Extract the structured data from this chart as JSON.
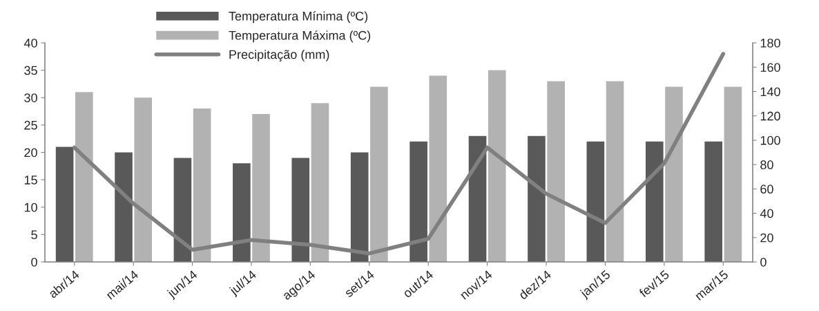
{
  "chart_data": {
    "type": "bar",
    "categories": [
      "abr/14",
      "mai/14",
      "jun/14",
      "jul/14",
      "ago/14",
      "set/14",
      "out/14",
      "nov/14",
      "dez/14",
      "jan/15",
      "fev/15",
      "mar/15"
    ],
    "series": [
      {
        "name": "Temperatura Mínima (ºC)",
        "color": "#595959",
        "values": [
          21,
          20,
          19,
          18,
          19,
          20,
          22,
          23,
          23,
          22,
          22,
          22
        ]
      },
      {
        "name": "Temperatura Máxima (ºC)",
        "color": "#b2b2b2",
        "values": [
          31,
          30,
          28,
          27,
          29,
          32,
          34,
          35,
          33,
          33,
          32,
          32
        ]
      },
      {
        "name": "Precipitação (mm)",
        "type": "line",
        "axis": "y2",
        "color": "#808080",
        "values": [
          94,
          48,
          10,
          18,
          14,
          7,
          19,
          94,
          56,
          32,
          81,
          171
        ]
      }
    ],
    "ylim": [
      0,
      40
    ],
    "yticks": [
      0,
      5,
      10,
      15,
      20,
      25,
      30,
      35,
      40
    ],
    "y2lim": [
      0,
      180
    ],
    "y2ticks": [
      0,
      20,
      40,
      60,
      80,
      100,
      120,
      140,
      160,
      180
    ],
    "grid": false,
    "legend": "top",
    "marker": "none",
    "line_style": "solid"
  }
}
